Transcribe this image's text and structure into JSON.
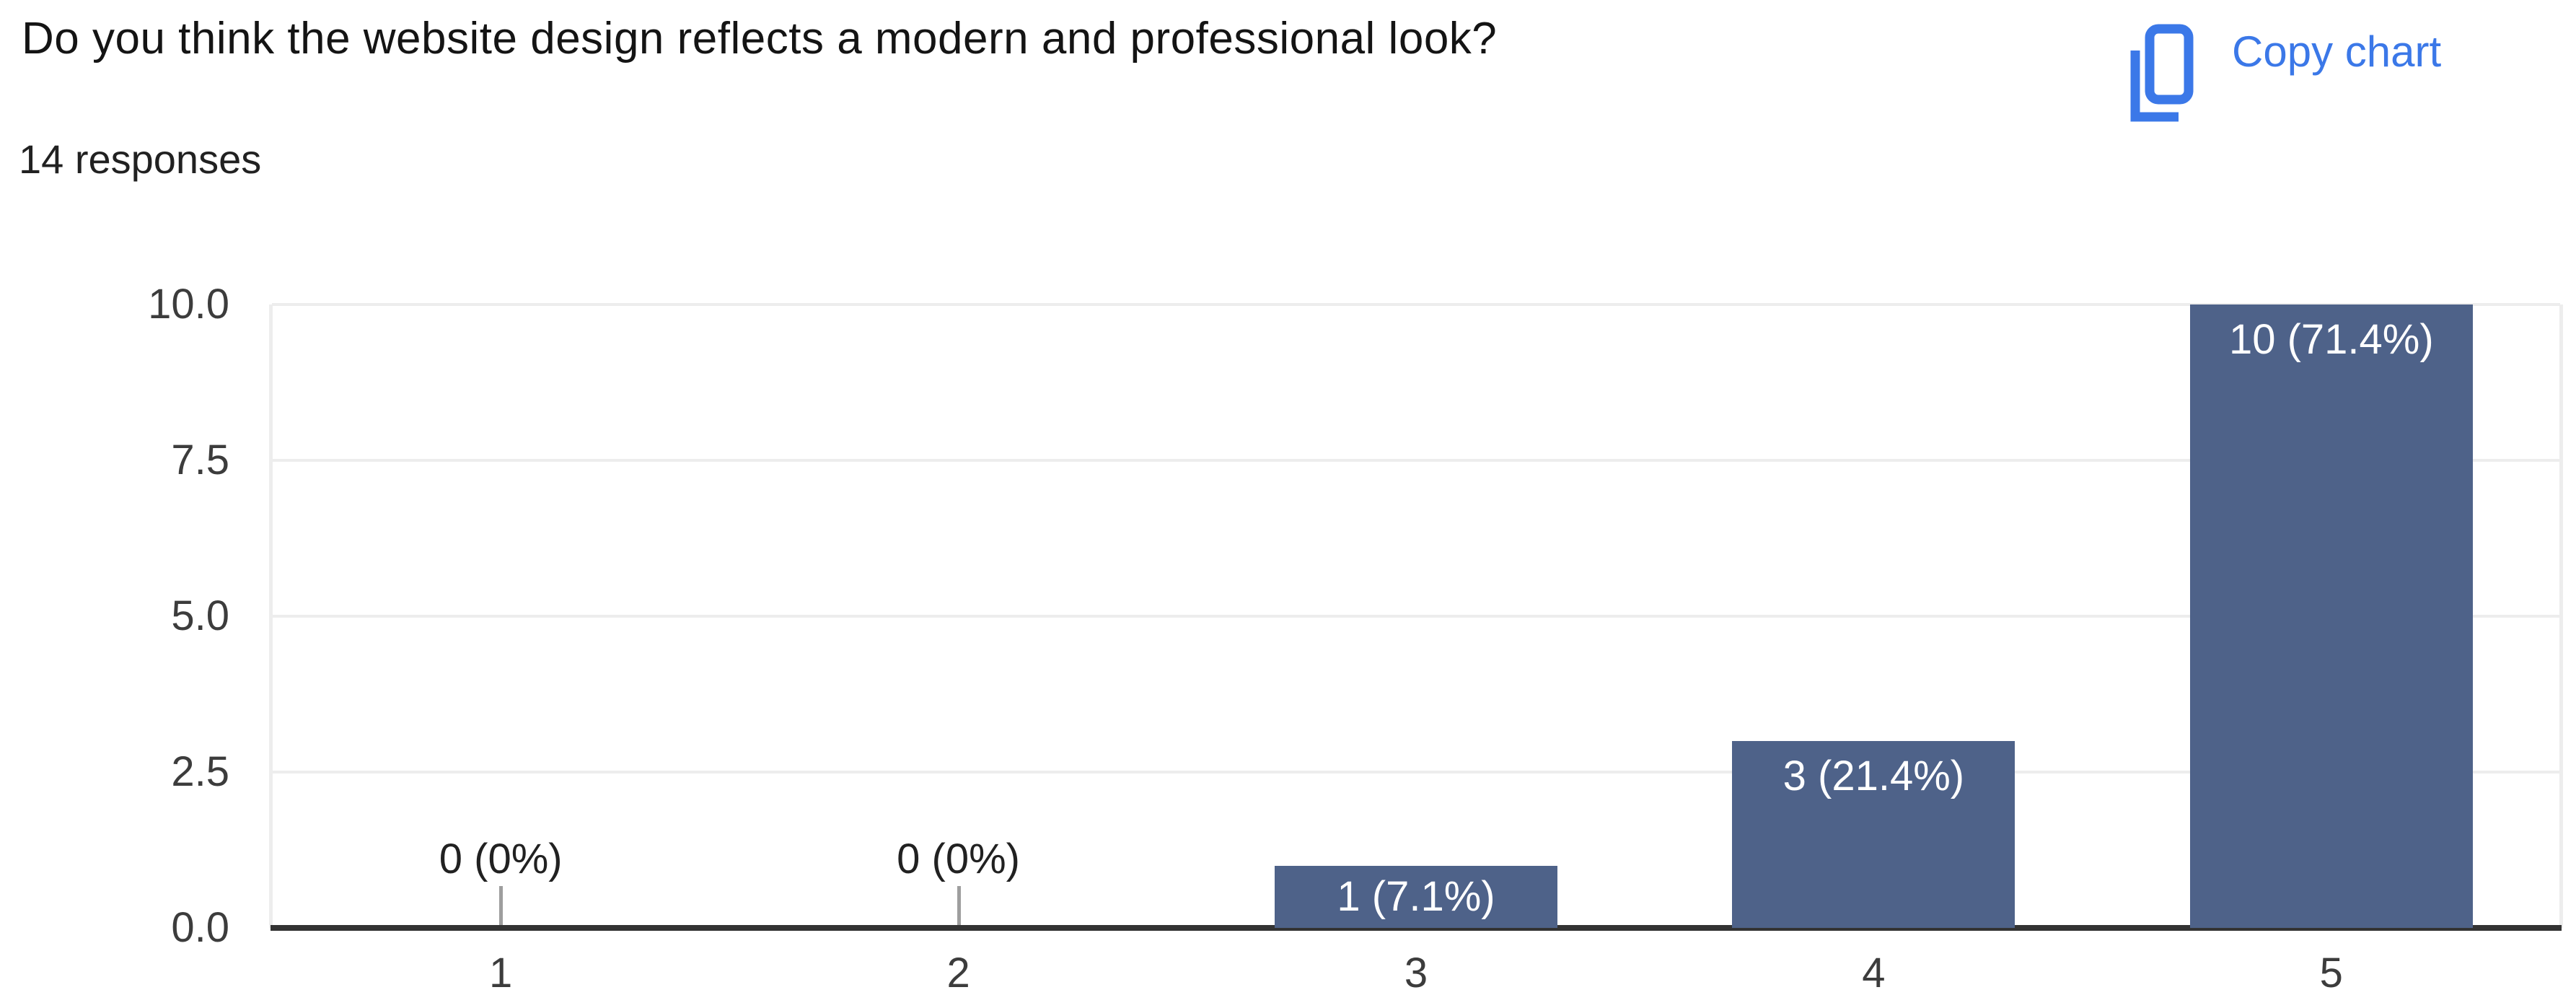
{
  "header": {
    "title": "Do you think the website design reflects a modern and professional look?",
    "response_count": "14 responses",
    "copy_button_label": "Copy chart"
  },
  "colors": {
    "accent_blue": "#3b78e8",
    "bar_fill": "#4e6289",
    "gridline": "#ededed",
    "plot_border": "#ededed",
    "axis_line": "#333333",
    "tick_stub": "#9e9e9e",
    "axis_text": "#3c3c3c",
    "title_text": "#141414",
    "subtitle_text": "#212121",
    "zero_label_text": "#212121",
    "bar_label_text": "#ffffff"
  },
  "chart_data": {
    "type": "bar",
    "title": "Do you think the website design reflects a modern and professional look?",
    "subtitle": "14 responses",
    "total_responses": 14,
    "categories": [
      "1",
      "2",
      "3",
      "4",
      "5"
    ],
    "values": [
      0,
      0,
      1,
      3,
      10
    ],
    "value_labels": [
      "0 (0%)",
      "0 (0%)",
      "1 (7.1%)",
      "3 (21.4%)",
      "10 (71.4%)"
    ],
    "xlabel": "",
    "ylabel": "",
    "ylim": [
      0,
      10
    ],
    "yticks": [
      0,
      2.5,
      5,
      7.5,
      10
    ],
    "ytick_labels": [
      "0.0",
      "2.5",
      "5.0",
      "7.5",
      "10.0"
    ],
    "grid": true,
    "legend": "none"
  }
}
